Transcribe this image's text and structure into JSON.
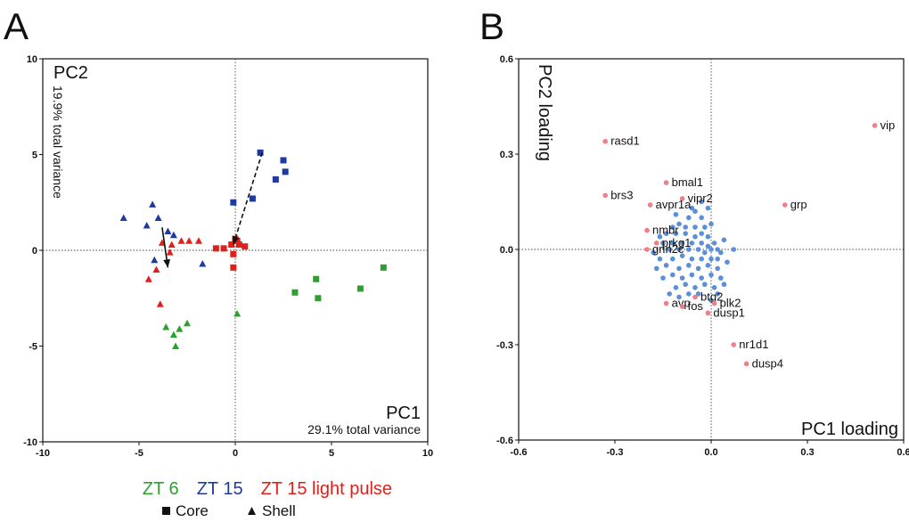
{
  "panels": {
    "a_letter": "A",
    "b_letter": "B"
  },
  "legend": {
    "groups": [
      {
        "label": "ZT 6",
        "color": "#2ca02c"
      },
      {
        "label": "ZT 15",
        "color": "#1f3a9e"
      },
      {
        "label": "ZT 15 light pulse",
        "color": "#e0201b"
      }
    ],
    "shapes": [
      {
        "label": "Core",
        "symbol": "square"
      },
      {
        "label": "Shell",
        "symbol": "triangle"
      }
    ]
  },
  "chart_data": [
    {
      "type": "scatter",
      "panel": "A",
      "xlabel": "PC1",
      "xlabel_sub": "29.1% total variance",
      "ylabel": "PC2",
      "ylabel_sub": "19.9% total variance",
      "xlim": [
        -10,
        10
      ],
      "ylim": [
        -10,
        10
      ],
      "x_ticks": [
        -10,
        -5,
        0,
        5,
        10
      ],
      "y_ticks": [
        -10,
        -5,
        0,
        5,
        10
      ],
      "x_tick_labels": [
        "-10",
        "-5",
        "0",
        "5",
        "10"
      ],
      "y_tick_labels": [
        "-10",
        "-5",
        "0",
        "5",
        "10"
      ],
      "zero_lines": "dotted",
      "colors": {
        "ZT 6": "#2ca02c",
        "ZT 15": "#1f3a9e",
        "ZT 15 light pulse": "#e0201b"
      },
      "series": [
        {
          "group": "ZT 6",
          "marker": "square",
          "points": [
            [
              3.1,
              -2.2
            ],
            [
              4.2,
              -1.5
            ],
            [
              4.3,
              -2.5
            ],
            [
              6.5,
              -2.0
            ],
            [
              7.7,
              -0.9
            ]
          ]
        },
        {
          "group": "ZT 6",
          "marker": "triangle",
          "points": [
            [
              -3.6,
              -4.0
            ],
            [
              -3.2,
              -4.4
            ],
            [
              -2.9,
              -4.1
            ],
            [
              -2.5,
              -3.8
            ],
            [
              -3.1,
              -5.0
            ],
            [
              0.1,
              -3.3
            ]
          ]
        },
        {
          "group": "ZT 15",
          "marker": "square",
          "points": [
            [
              1.3,
              5.1
            ],
            [
              2.5,
              4.7
            ],
            [
              2.6,
              4.1
            ],
            [
              2.1,
              3.7
            ],
            [
              0.9,
              2.7
            ],
            [
              -0.1,
              2.5
            ]
          ]
        },
        {
          "group": "ZT 15",
          "marker": "triangle",
          "points": [
            [
              -5.8,
              1.7
            ],
            [
              -4.3,
              2.4
            ],
            [
              -4.0,
              1.7
            ],
            [
              -4.6,
              1.3
            ],
            [
              -3.5,
              1.0
            ],
            [
              -3.2,
              0.8
            ],
            [
              -4.2,
              -0.5
            ],
            [
              -1.7,
              -0.7
            ]
          ]
        },
        {
          "group": "ZT 15 light pulse",
          "marker": "square",
          "points": [
            [
              -1.0,
              0.1
            ],
            [
              -0.6,
              0.1
            ],
            [
              -0.2,
              0.3
            ],
            [
              0.0,
              0.6
            ],
            [
              0.1,
              0.5
            ],
            [
              0.2,
              0.3
            ],
            [
              0.5,
              0.2
            ],
            [
              -0.1,
              -0.2
            ],
            [
              -0.1,
              -0.9
            ]
          ]
        },
        {
          "group": "ZT 15 light pulse",
          "marker": "triangle",
          "points": [
            [
              -3.8,
              0.4
            ],
            [
              -3.3,
              0.3
            ],
            [
              -2.8,
              0.5
            ],
            [
              -2.4,
              0.5
            ],
            [
              -1.9,
              0.5
            ],
            [
              -3.4,
              -0.1
            ],
            [
              -4.1,
              -1.0
            ],
            [
              -3.9,
              -2.8
            ],
            [
              -4.5,
              -1.5
            ]
          ]
        }
      ],
      "arrows": [
        {
          "style": "solid",
          "from": [
            -3.8,
            1.2
          ],
          "to": [
            -3.5,
            -0.9
          ]
        },
        {
          "style": "dashed",
          "from": [
            1.4,
            5.1
          ],
          "to": [
            -0.1,
            0.3
          ]
        }
      ]
    },
    {
      "type": "scatter",
      "panel": "B",
      "xlabel": "PC1 loading",
      "ylabel": "PC2 loading",
      "xlim": [
        -0.6,
        0.6
      ],
      "ylim": [
        -0.6,
        0.6
      ],
      "x_ticks": [
        -0.6,
        -0.3,
        0.0,
        0.3,
        0.6
      ],
      "y_ticks": [
        -0.6,
        -0.3,
        0.0,
        0.3,
        0.6
      ],
      "x_tick_labels": [
        "-0.6",
        "-0.3",
        "0.0",
        "0.3",
        "0.6"
      ],
      "y_tick_labels": [
        "-0.6",
        "-0.3",
        "0.0",
        "0.3",
        "0.6"
      ],
      "zero_lines": "dotted",
      "highlight_color": "#ef7f86",
      "cloud_color": "#5b8fd6",
      "labeled_genes": [
        {
          "name": "vip",
          "x": 0.51,
          "y": 0.39
        },
        {
          "name": "rasd1",
          "x": -0.33,
          "y": 0.34
        },
        {
          "name": "bmal1",
          "x": -0.14,
          "y": 0.21
        },
        {
          "name": "brs3",
          "x": -0.33,
          "y": 0.17
        },
        {
          "name": "vipr2",
          "x": -0.09,
          "y": 0.16
        },
        {
          "name": "avpr1a",
          "x": -0.19,
          "y": 0.14
        },
        {
          "name": "grp",
          "x": 0.23,
          "y": 0.14
        },
        {
          "name": "nmbr",
          "x": -0.2,
          "y": 0.06
        },
        {
          "name": "prkg1",
          "x": -0.17,
          "y": 0.02
        },
        {
          "name": "grin2c",
          "x": -0.2,
          "y": 0.0
        },
        {
          "name": "btg2",
          "x": -0.05,
          "y": -0.15
        },
        {
          "name": "plk2",
          "x": 0.01,
          "y": -0.17
        },
        {
          "name": "avp",
          "x": -0.14,
          "y": -0.17
        },
        {
          "name": "fos",
          "x": -0.09,
          "y": -0.18
        },
        {
          "name": "dusp1",
          "x": -0.01,
          "y": -0.2
        },
        {
          "name": "nr1d1",
          "x": 0.07,
          "y": -0.3
        },
        {
          "name": "dusp4",
          "x": 0.11,
          "y": -0.36
        }
      ],
      "unlabeled_genes": [
        [
          -0.01,
          0.13
        ],
        [
          -0.03,
          0.1
        ],
        [
          -0.05,
          0.12
        ],
        [
          -0.07,
          0.1
        ],
        [
          -0.1,
          0.08
        ],
        [
          -0.12,
          0.07
        ],
        [
          -0.08,
          0.07
        ],
        [
          -0.05,
          0.07
        ],
        [
          -0.02,
          0.07
        ],
        [
          0.0,
          0.08
        ],
        [
          -0.14,
          0.05
        ],
        [
          -0.11,
          0.05
        ],
        [
          -0.08,
          0.05
        ],
        [
          -0.05,
          0.04
        ],
        [
          -0.03,
          0.05
        ],
        [
          -0.01,
          0.04
        ],
        [
          -0.15,
          0.02
        ],
        [
          -0.12,
          0.02
        ],
        [
          -0.09,
          0.02
        ],
        [
          -0.06,
          0.02
        ],
        [
          -0.03,
          0.02
        ],
        [
          -0.01,
          0.01
        ],
        [
          0.01,
          0.02
        ],
        [
          -0.13,
          0.0
        ],
        [
          -0.1,
          0.0
        ],
        [
          -0.07,
          0.0
        ],
        [
          -0.04,
          0.0
        ],
        [
          -0.02,
          -0.01
        ],
        [
          0.0,
          0.0
        ],
        [
          0.02,
          0.0
        ],
        [
          0.03,
          -0.01
        ],
        [
          0.07,
          0.0
        ],
        [
          -0.16,
          -0.03
        ],
        [
          -0.12,
          -0.03
        ],
        [
          -0.09,
          -0.02
        ],
        [
          -0.06,
          -0.03
        ],
        [
          -0.03,
          -0.03
        ],
        [
          0.0,
          -0.03
        ],
        [
          0.02,
          -0.03
        ],
        [
          -0.14,
          -0.05
        ],
        [
          -0.1,
          -0.06
        ],
        [
          -0.07,
          -0.05
        ],
        [
          -0.04,
          -0.06
        ],
        [
          -0.01,
          -0.05
        ],
        [
          0.02,
          -0.06
        ],
        [
          -0.12,
          -0.08
        ],
        [
          -0.09,
          -0.09
        ],
        [
          -0.06,
          -0.08
        ],
        [
          -0.03,
          -0.09
        ],
        [
          0.0,
          -0.08
        ],
        [
          0.03,
          -0.09
        ],
        [
          -0.08,
          -0.11
        ],
        [
          -0.05,
          -0.12
        ],
        [
          -0.02,
          -0.11
        ],
        [
          0.01,
          -0.12
        ],
        [
          -0.11,
          -0.12
        ],
        [
          -0.04,
          -0.14
        ],
        [
          0.02,
          -0.14
        ],
        [
          -0.15,
          -0.09
        ],
        [
          -0.17,
          -0.06
        ],
        [
          -0.18,
          -0.01
        ],
        [
          -0.16,
          0.04
        ],
        [
          0.04,
          0.03
        ],
        [
          0.05,
          -0.04
        ],
        [
          -0.07,
          -0.14
        ],
        [
          -0.1,
          -0.15
        ],
        [
          0.0,
          -0.16
        ],
        [
          -0.13,
          -0.14
        ],
        [
          0.04,
          -0.11
        ],
        [
          -0.06,
          0.13
        ],
        [
          -0.03,
          0.15
        ],
        [
          -0.11,
          0.11
        ]
      ]
    }
  ]
}
